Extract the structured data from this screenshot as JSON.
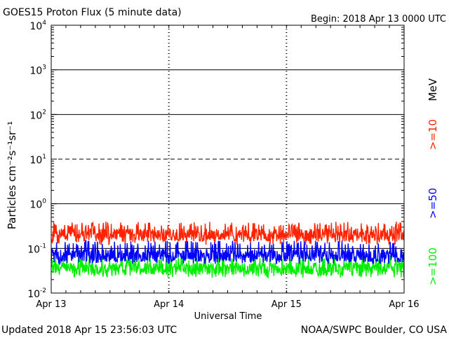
{
  "chart_data": {
    "type": "line",
    "title": "GOES15 Proton Flux (5 minute data)",
    "begin_label": "Begin: 2018 Apr 13 0000 UTC",
    "xlabel": "Universal Time",
    "ylabel": "Particles cm⁻²s⁻¹sr⁻¹",
    "yscale": "log",
    "ylim": [
      0.01,
      10000
    ],
    "x_range": [
      "Apr 13",
      "Apr 16"
    ],
    "x_ticks": [
      "Apr 13",
      "Apr 14",
      "Apr 15",
      "Apr 16"
    ],
    "y_ticks": [
      {
        "base": "10",
        "exp": "-2"
      },
      {
        "base": "10",
        "exp": "-1"
      },
      {
        "base": "10",
        "exp": "0"
      },
      {
        "base": "10",
        "exp": "1"
      },
      {
        "base": "10",
        "exp": "2"
      },
      {
        "base": "10",
        "exp": "3"
      },
      {
        "base": "10",
        "exp": "4"
      }
    ],
    "threshold_lines": [
      {
        "value": 1000,
        "style": "solid"
      },
      {
        "value": 100,
        "style": "solid"
      },
      {
        "value": 10,
        "style": "dashed"
      },
      {
        "value": 1,
        "style": "solid"
      },
      {
        "value": 0.1,
        "style": "solid"
      }
    ],
    "unit_label": "MeV",
    "series": [
      {
        "name": ">=10",
        "color": "#ff2200",
        "typical": 0.2,
        "range": [
          0.12,
          0.4
        ]
      },
      {
        "name": ">=50",
        "color": "#0000ff",
        "typical": 0.07,
        "range": [
          0.045,
          0.15
        ]
      },
      {
        "name": ">=100",
        "color": "#00ee00",
        "typical": 0.035,
        "range": [
          0.022,
          0.07
        ]
      }
    ]
  },
  "footer": {
    "updated": "Updated 2018 Apr 15 23:56:03 UTC",
    "credit": "NOAA/SWPC Boulder, CO USA"
  }
}
